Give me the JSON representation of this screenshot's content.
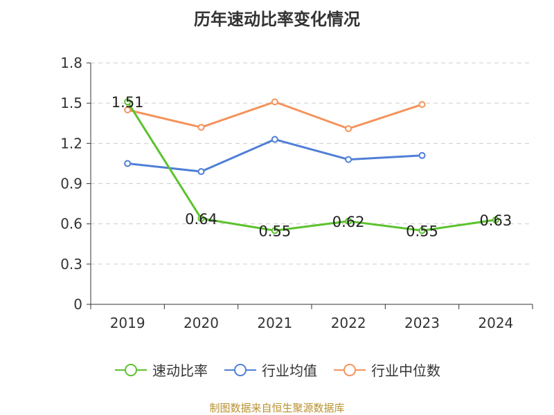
{
  "title": "历年速动比率变化情况",
  "source_note": "制图数据来自恒生聚源数据库",
  "chart_data": {
    "type": "line",
    "title": "历年速动比率变化情况",
    "categories": [
      "2019",
      "2020",
      "2021",
      "2022",
      "2023",
      "2024"
    ],
    "ylim": [
      0,
      1.8
    ],
    "yticks": [
      "0",
      "0.3",
      "0.6",
      "0.9",
      "1.2",
      "1.5",
      "1.8"
    ],
    "grid": true,
    "legend_position": "bottom",
    "series": [
      {
        "name": "速动比率",
        "color": "#5cc22d",
        "values": [
          1.51,
          0.64,
          0.55,
          0.62,
          0.55,
          0.63
        ],
        "labels": [
          "1.51",
          "0.64",
          "0.55",
          "0.62",
          "0.55",
          "0.63"
        ]
      },
      {
        "name": "行业均值",
        "color": "#4f7fd6",
        "values": [
          1.05,
          0.99,
          1.23,
          1.08,
          1.11,
          null
        ]
      },
      {
        "name": "行业中位数",
        "color": "#f5935a",
        "values": [
          1.45,
          1.32,
          1.51,
          1.31,
          1.49,
          null
        ]
      }
    ]
  }
}
